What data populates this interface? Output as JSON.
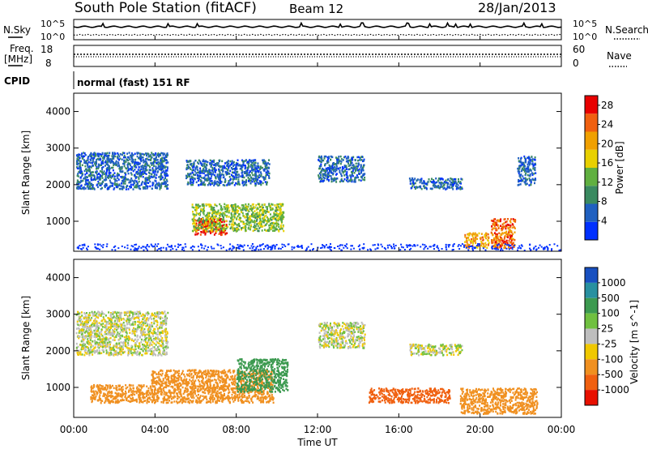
{
  "header": {
    "station": "South Pole Station (fitACF)",
    "beam": "Beam 12",
    "date": "28/Jan/2013"
  },
  "sky_panel": {
    "left_label": "N.Sky",
    "right_label": "N.Search",
    "ticks_top": "10^5",
    "ticks_bottom": "10^0"
  },
  "freq_panel": {
    "left_label_1": "Freq.",
    "left_label_2": "[MHz]",
    "left_ticks": [
      "18",
      "8"
    ],
    "right_label": "Nave",
    "right_ticks": [
      "60",
      "0"
    ]
  },
  "cpid_panel": {
    "left_label": "CPID",
    "program": "normal (fast) 151 RF"
  },
  "colors": {
    "power": [
      "#0030ff",
      "#2060c0",
      "#3a8a60",
      "#60b040",
      "#e8d000",
      "#f0a000",
      "#f06010",
      "#e80000"
    ],
    "velocity": [
      "#1850c0",
      "#2890a0",
      "#3c9a50",
      "#70c040",
      "#bebebe",
      "#f0c800",
      "#f09020",
      "#f06010",
      "#e81000"
    ]
  },
  "chart_data": [
    {
      "type": "heatmap",
      "parameter": "power",
      "ylabel": "Slant Range [km]",
      "y_ticks": [
        1000,
        2000,
        3000,
        4000
      ],
      "ylim": [
        180,
        4500
      ],
      "x_ticks": [
        "00:00",
        "04:00",
        "08:00",
        "12:00",
        "16:00",
        "20:00",
        "00:00"
      ],
      "xlim_hours": [
        0,
        24
      ],
      "colorbar": {
        "label": "Power [dB]",
        "ticks": [
          4,
          8,
          12,
          16,
          20,
          24,
          28
        ],
        "range": [
          0,
          30
        ]
      },
      "features": [
        {
          "t_start": 0.1,
          "t_end": 4.6,
          "r_min": 1900,
          "r_max": 2900,
          "level": 6
        },
        {
          "t_start": 5.9,
          "t_end": 7.5,
          "r_min": 650,
          "r_max": 1100,
          "level": 27
        },
        {
          "t_start": 5.8,
          "t_end": 10.3,
          "r_min": 750,
          "r_max": 1500,
          "level": 14
        },
        {
          "t_start": 5.5,
          "t_end": 9.6,
          "r_min": 2000,
          "r_max": 2700,
          "level": 6
        },
        {
          "t_start": 12.0,
          "t_end": 14.3,
          "r_min": 2100,
          "r_max": 2800,
          "level": 6
        },
        {
          "t_start": 16.5,
          "t_end": 19.1,
          "r_min": 1900,
          "r_max": 2200,
          "level": 6
        },
        {
          "t_start": 20.5,
          "t_end": 21.7,
          "r_min": 300,
          "r_max": 1100,
          "level": 24
        },
        {
          "t_start": 19.2,
          "t_end": 20.4,
          "r_min": 300,
          "r_max": 700,
          "level": 20
        },
        {
          "t_start": 21.8,
          "t_end": 22.7,
          "r_min": 2000,
          "r_max": 2800,
          "level": 6
        }
      ]
    },
    {
      "type": "heatmap",
      "parameter": "velocity",
      "ylabel": "Slant Range [km]",
      "y_ticks": [
        1000,
        2000,
        3000,
        4000
      ],
      "ylim": [
        180,
        4500
      ],
      "x_ticks": [
        "00:00",
        "04:00",
        "08:00",
        "12:00",
        "16:00",
        "20:00",
        "00:00"
      ],
      "xlabel": "Time UT",
      "xlim_hours": [
        0,
        24
      ],
      "colorbar": {
        "label": "Velocity [m s^-1]",
        "ticks": [
          "1000",
          "500",
          "100",
          "25",
          "-25",
          "-100",
          "-500",
          "-1000"
        ]
      },
      "features": [
        {
          "t_start": 0.1,
          "t_end": 4.6,
          "r_min": 1900,
          "r_max": 3100,
          "velocity": 0
        },
        {
          "t_start": 3.8,
          "t_end": 9.8,
          "r_min": 600,
          "r_max": 1500,
          "velocity": -300
        },
        {
          "t_start": 8.0,
          "t_end": 10.5,
          "r_min": 900,
          "r_max": 1800,
          "velocity": 200
        },
        {
          "t_start": 0.8,
          "t_end": 3.8,
          "r_min": 600,
          "r_max": 1100,
          "velocity": -300
        },
        {
          "t_start": 12.0,
          "t_end": 14.3,
          "r_min": 2100,
          "r_max": 2800,
          "velocity": 0
        },
        {
          "t_start": 16.5,
          "t_end": 19.1,
          "r_min": 1900,
          "r_max": 2200,
          "velocity": 0
        },
        {
          "t_start": 19.0,
          "t_end": 22.8,
          "r_min": 300,
          "r_max": 1000,
          "velocity": -200
        },
        {
          "t_start": 14.5,
          "t_end": 18.5,
          "r_min": 600,
          "r_max": 1000,
          "velocity": -700
        }
      ]
    }
  ]
}
